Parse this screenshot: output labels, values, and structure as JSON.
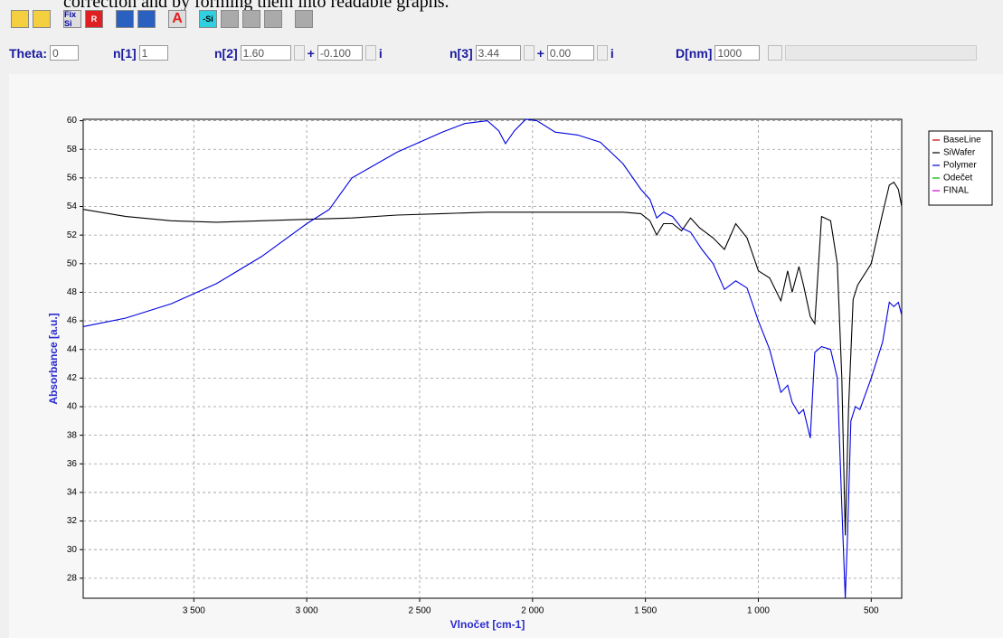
{
  "header_text": "correction and by forming them into readable graphs.",
  "toolbar": {
    "buttons": [
      "Fix Si",
      "R",
      "A",
      "-Si"
    ]
  },
  "controls": {
    "theta": {
      "label": "Theta:",
      "value": "0"
    },
    "n1": {
      "label": "n[1]",
      "value": "1"
    },
    "n2": {
      "label": "n[2]",
      "real": "1.60",
      "plus": "+",
      "imag": "-0.100",
      "i": "i"
    },
    "n3": {
      "label": "n[3]",
      "real": "3.44",
      "plus": "+",
      "imag": "0.00",
      "i": "i"
    },
    "d": {
      "label": "D[nm]",
      "value": "1000"
    }
  },
  "chart_data": {
    "type": "line",
    "x_label": "Vlnočet [cm-1]",
    "y_label": "Absorbance [a.u.]",
    "xlim": [
      3990,
      365
    ],
    "ylim": [
      26.6,
      60.1
    ],
    "xticks": [
      {
        "value": 3500,
        "label": "3 500"
      },
      {
        "value": 3000,
        "label": "3 000"
      },
      {
        "value": 2500,
        "label": "2 500"
      },
      {
        "value": 2000,
        "label": "2 000"
      },
      {
        "value": 1500,
        "label": "1 500"
      },
      {
        "value": 1000,
        "label": "1 000"
      },
      500
    ],
    "yticks": [
      28,
      30,
      32,
      34,
      36,
      38,
      40,
      42,
      44,
      46,
      48,
      50,
      52,
      54,
      56,
      58,
      60
    ],
    "grid": true,
    "legend": "right",
    "series": [
      {
        "name": "BaseLine",
        "color": "#c00000",
        "x": [],
        "values": []
      },
      {
        "name": "SiWafer",
        "color": "#000000",
        "x": [
          3990,
          3800,
          3600,
          3400,
          3200,
          3000,
          2800,
          2600,
          2400,
          2200,
          2000,
          1800,
          1600,
          1520,
          1480,
          1450,
          1420,
          1380,
          1340,
          1300,
          1260,
          1200,
          1150,
          1100,
          1050,
          1000,
          950,
          900,
          870,
          850,
          820,
          800,
          770,
          750,
          720,
          680,
          650,
          630,
          615,
          600,
          580,
          560,
          500,
          450,
          420,
          400,
          380,
          365
        ],
        "values": [
          53.8,
          53.3,
          53.0,
          52.9,
          53.0,
          53.1,
          53.2,
          53.4,
          53.5,
          53.6,
          53.6,
          53.6,
          53.6,
          53.5,
          53.0,
          52.0,
          52.8,
          52.8,
          52.3,
          53.2,
          52.5,
          51.8,
          51.0,
          52.8,
          51.8,
          49.5,
          49.0,
          47.4,
          49.5,
          48.0,
          49.8,
          48.5,
          46.3,
          45.8,
          53.3,
          53.0,
          50.0,
          42.0,
          31.0,
          40.0,
          47.5,
          48.5,
          50.0,
          53.5,
          55.5,
          55.7,
          55.2,
          54.0
        ]
      },
      {
        "name": "Polymer",
        "color": "#0000e0",
        "x": [
          3990,
          3800,
          3600,
          3400,
          3200,
          3000,
          2900,
          2800,
          2600,
          2400,
          2300,
          2200,
          2150,
          2120,
          2080,
          2030,
          1980,
          1900,
          1800,
          1700,
          1600,
          1520,
          1480,
          1450,
          1420,
          1380,
          1340,
          1300,
          1250,
          1200,
          1150,
          1100,
          1050,
          1000,
          950,
          900,
          870,
          850,
          820,
          800,
          770,
          750,
          720,
          680,
          650,
          630,
          615,
          605,
          590,
          570,
          550,
          500,
          450,
          420,
          400,
          380,
          365
        ],
        "values": [
          45.6,
          46.2,
          47.2,
          48.6,
          50.5,
          52.8,
          53.8,
          56.0,
          57.8,
          59.2,
          59.8,
          60.0,
          59.3,
          58.4,
          59.3,
          60.1,
          60.0,
          59.2,
          59.0,
          58.5,
          57.0,
          55.2,
          54.5,
          53.2,
          53.6,
          53.3,
          52.5,
          52.2,
          51.0,
          50.0,
          48.2,
          48.8,
          48.3,
          46.0,
          44.0,
          41.0,
          41.5,
          40.3,
          39.5,
          39.8,
          37.8,
          43.8,
          44.2,
          44.0,
          42.0,
          33.0,
          26.6,
          31.0,
          39.0,
          40.0,
          39.8,
          42.0,
          44.5,
          47.3,
          47.0,
          47.3,
          46.4
        ]
      },
      {
        "name": "Odečet",
        "color": "#00b000",
        "x": [],
        "values": []
      },
      {
        "name": "FINAL",
        "color": "#d000d0",
        "x": [],
        "values": []
      }
    ]
  }
}
